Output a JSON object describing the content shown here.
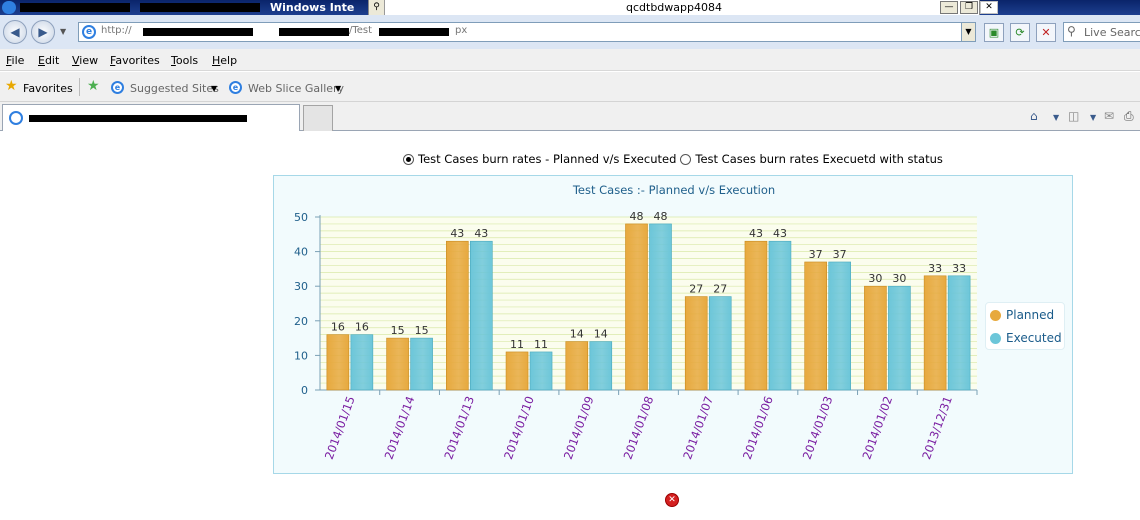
{
  "window": {
    "title": "Windows Inte",
    "host": "qcdtbdwapp4084",
    "minimize_glyph": "—",
    "restore_glyph": "❐",
    "close_glyph": "✕"
  },
  "address_bar": {
    "url_visible_start": "http://",
    "url_visible_mid": "/Test",
    "url_visible_end": "px",
    "search_placeholder": "Live Search"
  },
  "menu": {
    "items": [
      {
        "key": "F",
        "rest": "ile"
      },
      {
        "key": "E",
        "rest": "dit"
      },
      {
        "key": "V",
        "rest": "iew"
      },
      {
        "key": "F",
        "rest": "avorites"
      },
      {
        "key": "T",
        "rest": "ools"
      },
      {
        "key": "H",
        "rest": "elp"
      }
    ]
  },
  "favorites_bar": {
    "favorites_label": "Favorites",
    "suggested_sites": "Suggested Sites",
    "web_slice_gallery": "Web Slice Gallery"
  },
  "page": {
    "radio_options": [
      {
        "label": "Test Cases burn rates - Planned v/s Executed",
        "selected": true
      },
      {
        "label": "Test Cases burn rates Execuetd with status",
        "selected": false
      }
    ]
  },
  "chart_data": {
    "type": "bar",
    "title": "Test Cases :- Planned v/s Execution",
    "categories": [
      "2014/01/15",
      "2014/01/14",
      "2014/01/13",
      "2014/01/10",
      "2014/01/09",
      "2014/01/08",
      "2014/01/07",
      "2014/01/06",
      "2014/01/03",
      "2014/01/02",
      "2013/12/31"
    ],
    "series": [
      {
        "name": "Planned",
        "values": [
          16,
          15,
          43,
          11,
          14,
          48,
          27,
          43,
          37,
          30,
          33
        ],
        "color": "#e7a93e"
      },
      {
        "name": "Executed",
        "values": [
          16,
          15,
          43,
          11,
          14,
          48,
          27,
          43,
          37,
          30,
          33
        ],
        "color": "#6cc6d9"
      }
    ],
    "ylim": [
      0,
      50
    ],
    "yticks": [
      0,
      10,
      20,
      30,
      40,
      50
    ],
    "data_labels": true,
    "grid": true,
    "legend_position": "right",
    "colors": {
      "title": "#1f5f8b",
      "axis_labels": "#1f5f8b",
      "category_labels": "#7b1fa2",
      "gridline": "#d9e9a8",
      "plot_bg": "#fbfdee"
    }
  }
}
